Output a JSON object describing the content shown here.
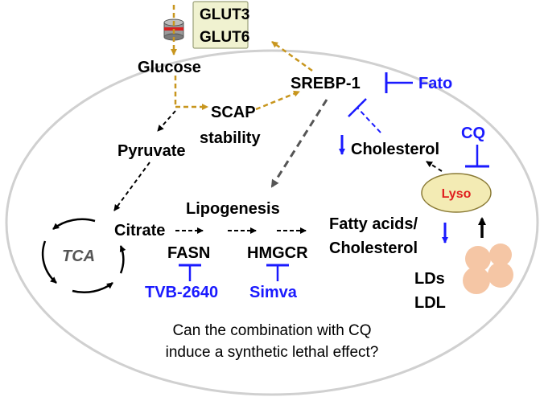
{
  "transporters": {
    "glut3": "GLUT3",
    "glut6": "GLUT6"
  },
  "nodes": {
    "glucose": "Glucose",
    "srebp1": "SREBP-1",
    "fato": "Fato",
    "scap_line1": "SCAP",
    "scap_line2": "stability",
    "pyruvate": "Pyruvate",
    "cholesterol": "Cholesterol",
    "cq": "CQ",
    "lyso": "Lyso",
    "lipogenesis": "Lipogenesis",
    "tca": "TCA",
    "citrate": "Citrate",
    "fasn": "FASN",
    "hmgcr": "HMGCR",
    "fatty_line1": "Fatty acids/",
    "fatty_line2": "Cholesterol",
    "tvb": "TVB-2640",
    "simva": "Simva",
    "lds": "LDs",
    "ldl": "LDL"
  },
  "question": {
    "line1": "Can the combination with CQ",
    "line2": "induce a synthetic lethal effect?"
  },
  "colors": {
    "inhibitor_blue": "#1a1aff",
    "gold_arrow": "#c8961e",
    "gray_arrow": "#555555",
    "lyso_fill": "#f3ebb4",
    "lyso_text": "#e02020",
    "droplet": "#f5c6a5",
    "glut_box": "#f0f2d0"
  },
  "icons": [
    "glucose-transporter-icon",
    "lysosome-icon",
    "lipid-droplets-icon"
  ]
}
